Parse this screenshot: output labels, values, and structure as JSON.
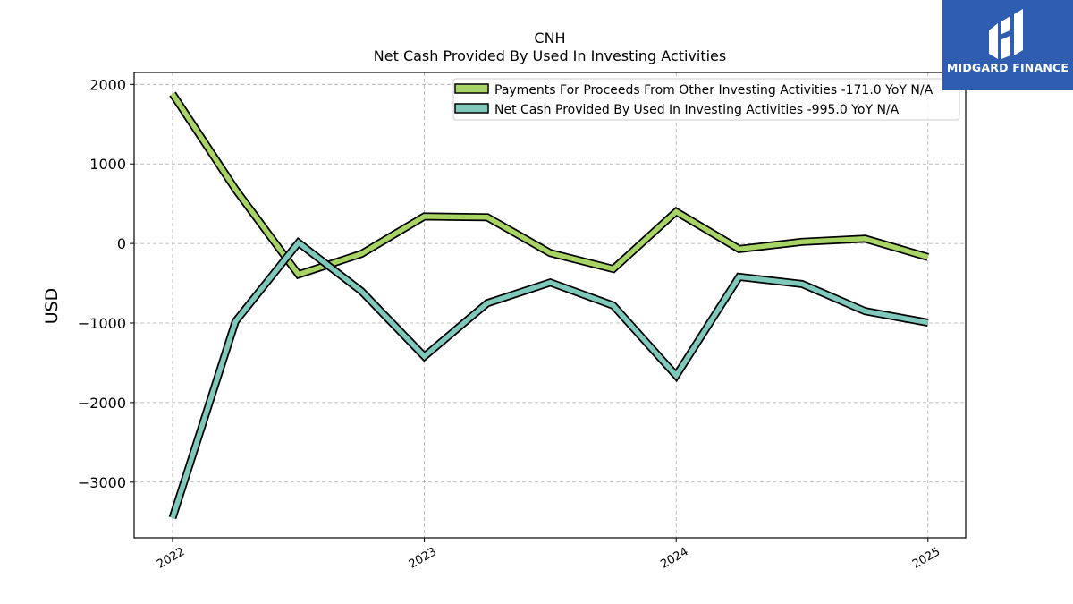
{
  "chart_data": {
    "type": "line",
    "title": "CNH",
    "subtitle": "Net Cash Provided By Used In Investing Activities",
    "ylabel": "USD",
    "xlabel": "",
    "x": [
      "2022-01",
      "2022-04",
      "2022-07",
      "2022-10",
      "2023-01",
      "2023-04",
      "2023-07",
      "2023-10",
      "2024-01",
      "2024-04",
      "2024-07",
      "2024-10",
      "2025-01"
    ],
    "xticks": [
      "2022",
      "2023",
      "2024",
      "2025"
    ],
    "yticks": [
      2000,
      1000,
      0,
      -1000,
      -2000,
      -3000
    ],
    "ylim": [
      -3700,
      2150
    ],
    "grid": true,
    "legend_position": "top-right",
    "series": [
      {
        "name": "Payments For Proceeds From Other Investing Activities  -171.0 YoY N/A",
        "color": "#a8d465",
        "values": [
          1880,
          680,
          -390,
          -130,
          340,
          330,
          -120,
          -320,
          400,
          -70,
          20,
          60,
          -171
        ]
      },
      {
        "name": "Net Cash Provided By Used In Investing Activities  -995.0 YoY N/A",
        "color": "#7ec9bb",
        "values": [
          -3450,
          -980,
          10,
          -600,
          -1420,
          -750,
          -490,
          -780,
          -1660,
          -420,
          -510,
          -850,
          -995
        ]
      }
    ]
  },
  "logo": {
    "text": "MIDGARD FINANCE",
    "color": "#2f5eb0"
  }
}
